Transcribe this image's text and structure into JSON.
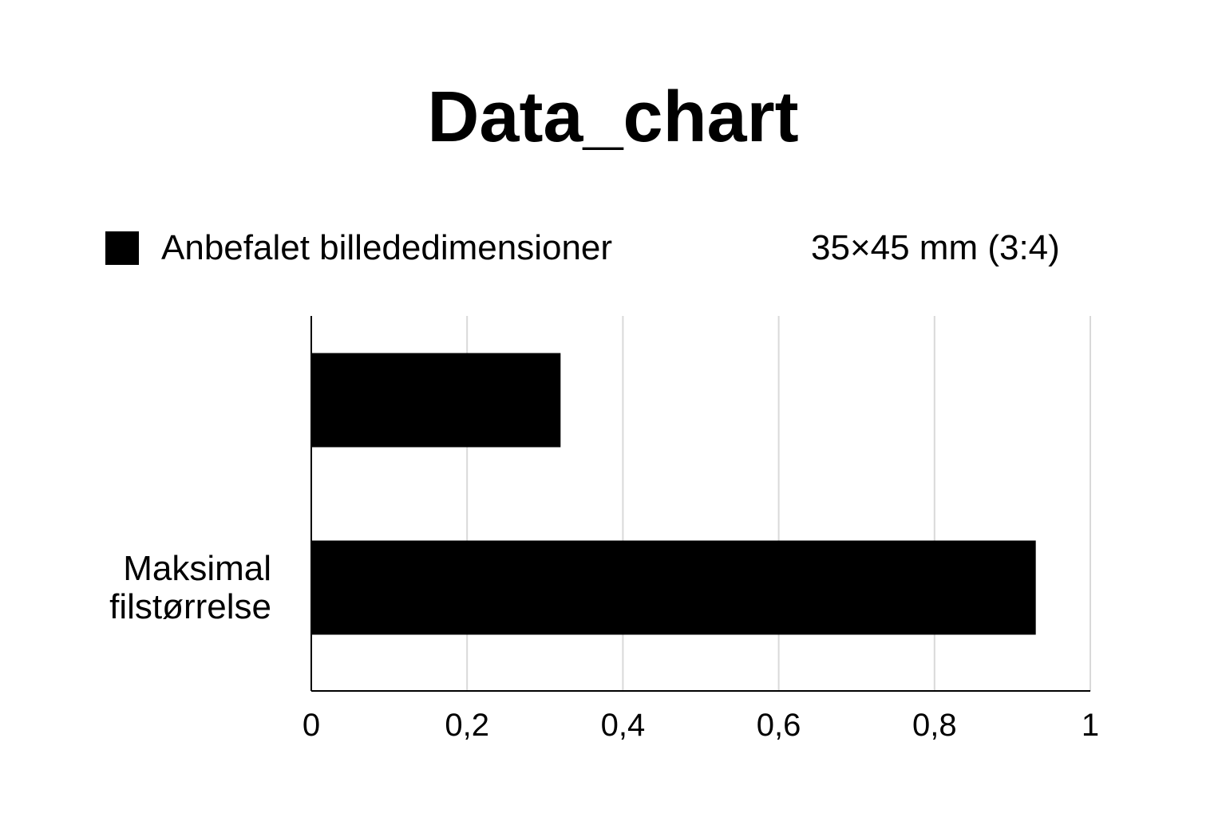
{
  "chart_data": {
    "type": "bar",
    "orientation": "horizontal",
    "title": "Data_chart",
    "legend": {
      "entries": [
        "Anbefalet billededimensioner"
      ],
      "note": "35×45 mm (3:4)",
      "placement": "top"
    },
    "categories": [
      "",
      "Maksimal\nfilstørrelse"
    ],
    "series": [
      {
        "name": "Anbefalet billededimensioner",
        "color": "#000000",
        "values": [
          0.32,
          0.93
        ]
      }
    ],
    "xlim": [
      0,
      1
    ],
    "xticks": [
      "0",
      "0,2",
      "0,4",
      "0,6",
      "0,8",
      "1"
    ],
    "xtick_values": [
      0,
      0.2,
      0.4,
      0.6,
      0.8,
      1
    ],
    "grid": "vertical",
    "grid_color": "#d9d9d9",
    "xlabel": "",
    "ylabel": ""
  }
}
